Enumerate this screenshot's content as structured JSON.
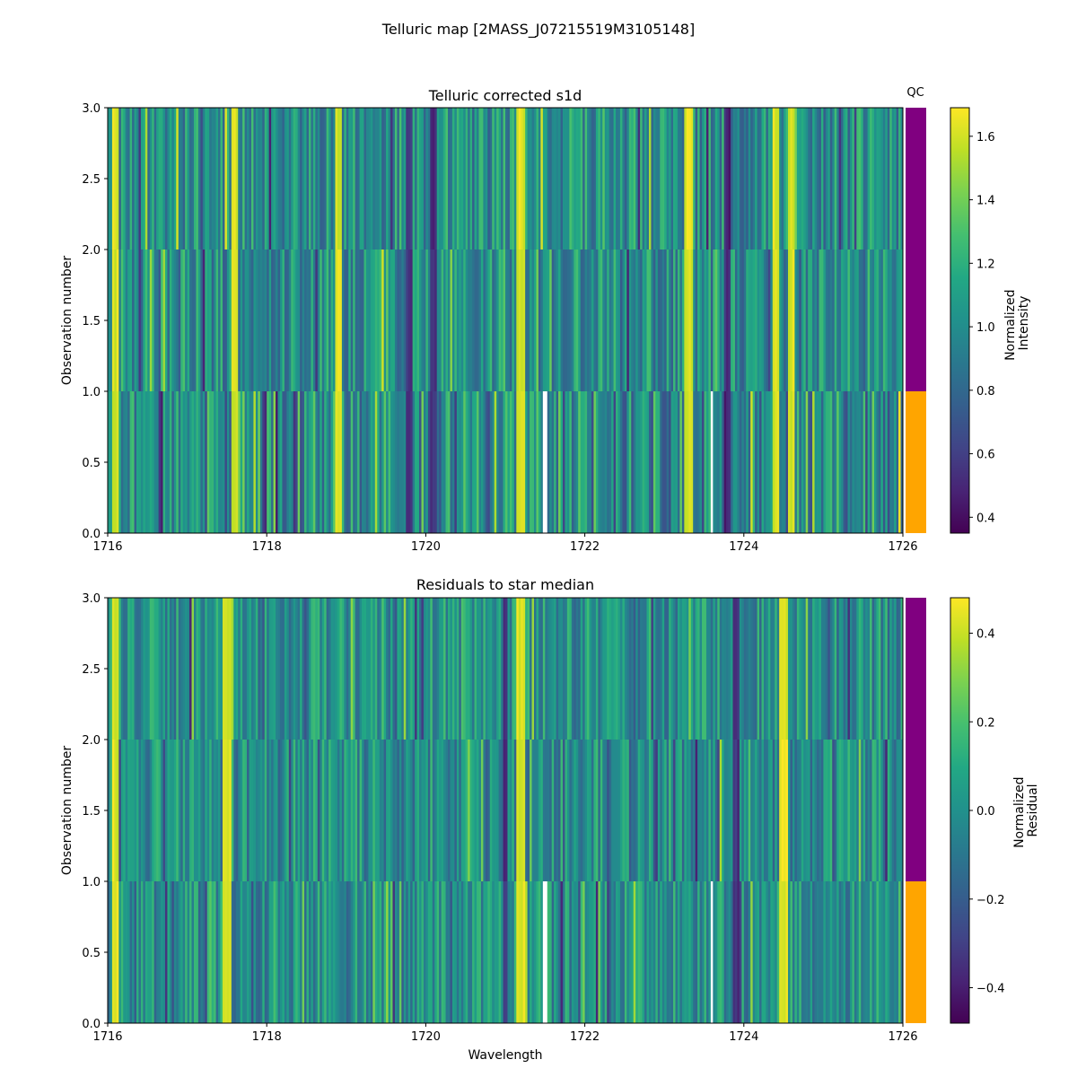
{
  "figure": {
    "title": "Telluric map [2MASS_J07215519M3105148]"
  },
  "chart_data": [
    {
      "type": "heatmap",
      "title": "Telluric corrected s1d",
      "xlabel": "",
      "ylabel": "Observation number",
      "xlim": [
        1716,
        1726
      ],
      "ylim": [
        0,
        3
      ],
      "xticks": [
        "1716",
        "1718",
        "1720",
        "1722",
        "1724",
        "1726"
      ],
      "yticks": [
        "0.0",
        "0.5",
        "1.0",
        "1.5",
        "2.0",
        "2.5",
        "3.0"
      ],
      "rows": 3,
      "colormap": "viridis",
      "clim": [
        0.35,
        1.69
      ],
      "colorbar_label": [
        "Normalized",
        "Intensity"
      ],
      "colorbar_ticks": [
        "0.4",
        "0.6",
        "0.8",
        "1.0",
        "1.2",
        "1.4",
        "1.6"
      ],
      "colorbar_tick_values": [
        0.4,
        0.6,
        0.8,
        1.0,
        1.2,
        1.4,
        1.6
      ],
      "qc_label": "QC",
      "qc_colors": [
        "#ffa500",
        "#800080",
        "#800080"
      ],
      "bright_lines": [
        1716.1,
        1717.6,
        1718.9,
        1721.2,
        1723.3,
        1724.4,
        1724.6
      ],
      "dark_lines": [
        1719.8,
        1720.1,
        1723.8
      ],
      "nan_lines": [
        1721.5,
        1723.6
      ]
    },
    {
      "type": "heatmap",
      "title": "Residuals to star median",
      "xlabel": "Wavelength",
      "ylabel": "Observation number",
      "xlim": [
        1716,
        1726
      ],
      "ylim": [
        0,
        3
      ],
      "xticks": [
        "1716",
        "1718",
        "1720",
        "1722",
        "1724",
        "1726"
      ],
      "yticks": [
        "0.0",
        "0.5",
        "1.0",
        "1.5",
        "2.0",
        "2.5",
        "3.0"
      ],
      "rows": 3,
      "colormap": "viridis",
      "clim": [
        -0.48,
        0.48
      ],
      "colorbar_label": [
        "Normalized",
        "Residual"
      ],
      "colorbar_ticks": [
        "−0.4",
        "−0.2",
        "0.0",
        "0.2",
        "0.4"
      ],
      "colorbar_tick_values": [
        -0.4,
        -0.2,
        0.0,
        0.2,
        0.4
      ],
      "qc_label": "",
      "qc_colors": [
        "#ffa500",
        "#800080",
        "#800080"
      ],
      "bright_lines": [
        1716.1,
        1717.5,
        1721.2,
        1724.5
      ],
      "dark_lines": [
        1721.0,
        1723.9
      ],
      "nan_lines": [
        1721.5,
        1723.6
      ]
    }
  ]
}
